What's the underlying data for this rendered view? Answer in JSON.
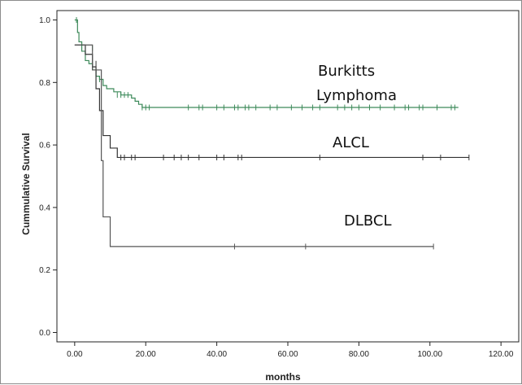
{
  "chart_data": {
    "type": "line",
    "step": true,
    "xlabel": "months",
    "ylabel": "Cummulative Survival",
    "xlim": [
      -5,
      125
    ],
    "ylim": [
      -0.03,
      1.03
    ],
    "x_ticks": [
      0,
      20,
      40,
      60,
      80,
      100,
      120
    ],
    "x_tick_labels": [
      "0.00",
      "20.00",
      "40.00",
      "60.00",
      "80.00",
      "100.00",
      "120.00"
    ],
    "y_ticks": [
      0,
      0.2,
      0.4,
      0.6,
      0.8,
      1.0
    ],
    "y_tick_labels": [
      "0.0",
      "0.2",
      "0.4",
      "0.6",
      "0.8",
      "1.0"
    ],
    "grid": false,
    "series": [
      {
        "name": "Burkitts Lymphoma",
        "color": "#3d8a5a",
        "steps": [
          [
            0,
            1.0
          ],
          [
            0.8,
            0.96
          ],
          [
            1.2,
            0.93
          ],
          [
            2,
            0.9
          ],
          [
            3,
            0.87
          ],
          [
            4,
            0.86
          ],
          [
            5,
            0.84
          ],
          [
            6,
            0.82
          ],
          [
            7,
            0.81
          ],
          [
            8,
            0.79
          ],
          [
            9,
            0.78
          ],
          [
            11,
            0.77
          ],
          [
            13,
            0.76
          ],
          [
            16,
            0.75
          ],
          [
            17,
            0.74
          ],
          [
            18,
            0.73
          ],
          [
            19,
            0.72
          ],
          [
            108,
            0.72
          ]
        ],
        "censored": [
          [
            0.5,
            1.0
          ],
          [
            5,
            0.91
          ],
          [
            7,
            0.81
          ],
          [
            12,
            0.76
          ],
          [
            13,
            0.76
          ],
          [
            14,
            0.76
          ],
          [
            15,
            0.76
          ],
          [
            19,
            0.72
          ],
          [
            20,
            0.72
          ],
          [
            21,
            0.72
          ],
          [
            32,
            0.72
          ],
          [
            35,
            0.72
          ],
          [
            36,
            0.72
          ],
          [
            40,
            0.72
          ],
          [
            42,
            0.72
          ],
          [
            45,
            0.72
          ],
          [
            46,
            0.72
          ],
          [
            48,
            0.72
          ],
          [
            49,
            0.72
          ],
          [
            51,
            0.72
          ],
          [
            55,
            0.72
          ],
          [
            57,
            0.72
          ],
          [
            61,
            0.72
          ],
          [
            64,
            0.72
          ],
          [
            67,
            0.72
          ],
          [
            69,
            0.72
          ],
          [
            74,
            0.72
          ],
          [
            76,
            0.72
          ],
          [
            78,
            0.72
          ],
          [
            80,
            0.72
          ],
          [
            83,
            0.72
          ],
          [
            86,
            0.72
          ],
          [
            90,
            0.72
          ],
          [
            93,
            0.72
          ],
          [
            94,
            0.72
          ],
          [
            97,
            0.72
          ],
          [
            98,
            0.72
          ],
          [
            102,
            0.72
          ],
          [
            106,
            0.72
          ],
          [
            107,
            0.72
          ]
        ]
      },
      {
        "name": "ALCL",
        "color": "#333333",
        "steps": [
          [
            0,
            0.92
          ],
          [
            3,
            0.89
          ],
          [
            5,
            0.85
          ],
          [
            6,
            0.78
          ],
          [
            7,
            0.71
          ],
          [
            8,
            0.63
          ],
          [
            10,
            0.59
          ],
          [
            12,
            0.56
          ],
          [
            111,
            0.56
          ]
        ],
        "censored": [
          [
            6,
            0.86
          ],
          [
            13,
            0.56
          ],
          [
            14,
            0.56
          ],
          [
            16,
            0.56
          ],
          [
            17,
            0.56
          ],
          [
            25,
            0.56
          ],
          [
            28,
            0.56
          ],
          [
            30,
            0.56
          ],
          [
            32,
            0.56
          ],
          [
            35,
            0.56
          ],
          [
            40,
            0.56
          ],
          [
            42,
            0.56
          ],
          [
            46,
            0.56
          ],
          [
            47,
            0.56
          ],
          [
            69,
            0.56
          ],
          [
            98,
            0.56
          ],
          [
            103,
            0.56
          ],
          [
            111,
            0.56
          ]
        ]
      },
      {
        "name": "DLBCL",
        "color": "#555555",
        "steps": [
          [
            0,
            0.92
          ],
          [
            5,
            0.84
          ],
          [
            7.5,
            0.55
          ],
          [
            8,
            0.37
          ],
          [
            10,
            0.275
          ],
          [
            101,
            0.275
          ]
        ],
        "censored": [
          [
            45,
            0.275
          ],
          [
            65,
            0.275
          ],
          [
            101,
            0.275
          ]
        ]
      }
    ]
  }
}
